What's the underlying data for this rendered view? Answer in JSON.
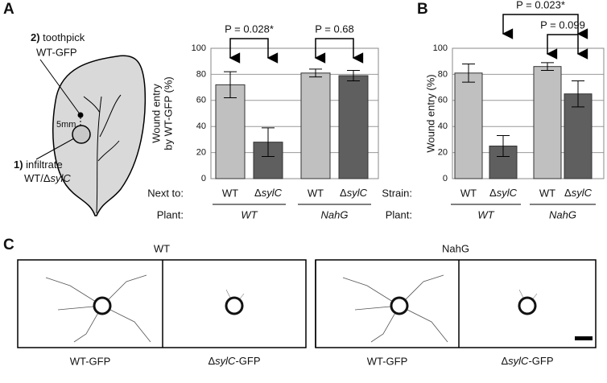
{
  "panels": {
    "a": "A",
    "b": "B",
    "c": "C"
  },
  "leaf": {
    "step2": {
      "num": "2)",
      "text": "toothpick"
    },
    "step2_strain": "WT-GFP",
    "distance": "5mm",
    "step1": {
      "num": "1)",
      "text": "infiltrate"
    },
    "step1_strain": "WT/ΔsylC"
  },
  "chart_data": [
    {
      "type": "bar",
      "y_label": [
        "Wound entry",
        "by WT-GFP (%)"
      ],
      "categories": [
        "WT",
        "ΔsylC",
        "WT",
        "ΔsylC"
      ],
      "values": [
        72,
        28,
        81,
        79
      ],
      "errors": [
        10,
        11,
        3,
        4
      ],
      "colors": [
        "#c0c0c0",
        "#5f5f5f",
        "#c0c0c0",
        "#5f5f5f"
      ],
      "x_row_label": "Next to:",
      "group_row_label": "Plant:",
      "groups": [
        "WT",
        "NahG"
      ],
      "comparisons": [
        "P = 0.028*",
        "P = 0.68"
      ],
      "ylim": [
        0,
        100
      ],
      "yticks": [
        0,
        20,
        40,
        60,
        80,
        100
      ],
      "grid": true
    },
    {
      "type": "bar",
      "y_label": [
        "Wound entry (%)"
      ],
      "categories": [
        "WT",
        "ΔsylC",
        "WT",
        "ΔsylC"
      ],
      "values": [
        81,
        25,
        86,
        65
      ],
      "errors": [
        7,
        8,
        3,
        10
      ],
      "colors": [
        "#c0c0c0",
        "#5f5f5f",
        "#c0c0c0",
        "#5f5f5f"
      ],
      "x_row_label": "Strain:",
      "group_row_label": "Plant:",
      "groups": [
        "WT",
        "NahG"
      ],
      "comparisons": [
        "P = 0.023*",
        "P = 0.099"
      ],
      "ylim": [
        0,
        100
      ],
      "yticks": [
        0,
        20,
        40,
        60,
        80,
        100
      ],
      "grid": true
    }
  ],
  "images": {
    "groups": [
      "WT",
      "NahG"
    ],
    "captions": [
      "WT-GFP",
      "ΔsylC-GFP",
      "WT-GFP",
      "ΔsylC-GFP"
    ]
  }
}
